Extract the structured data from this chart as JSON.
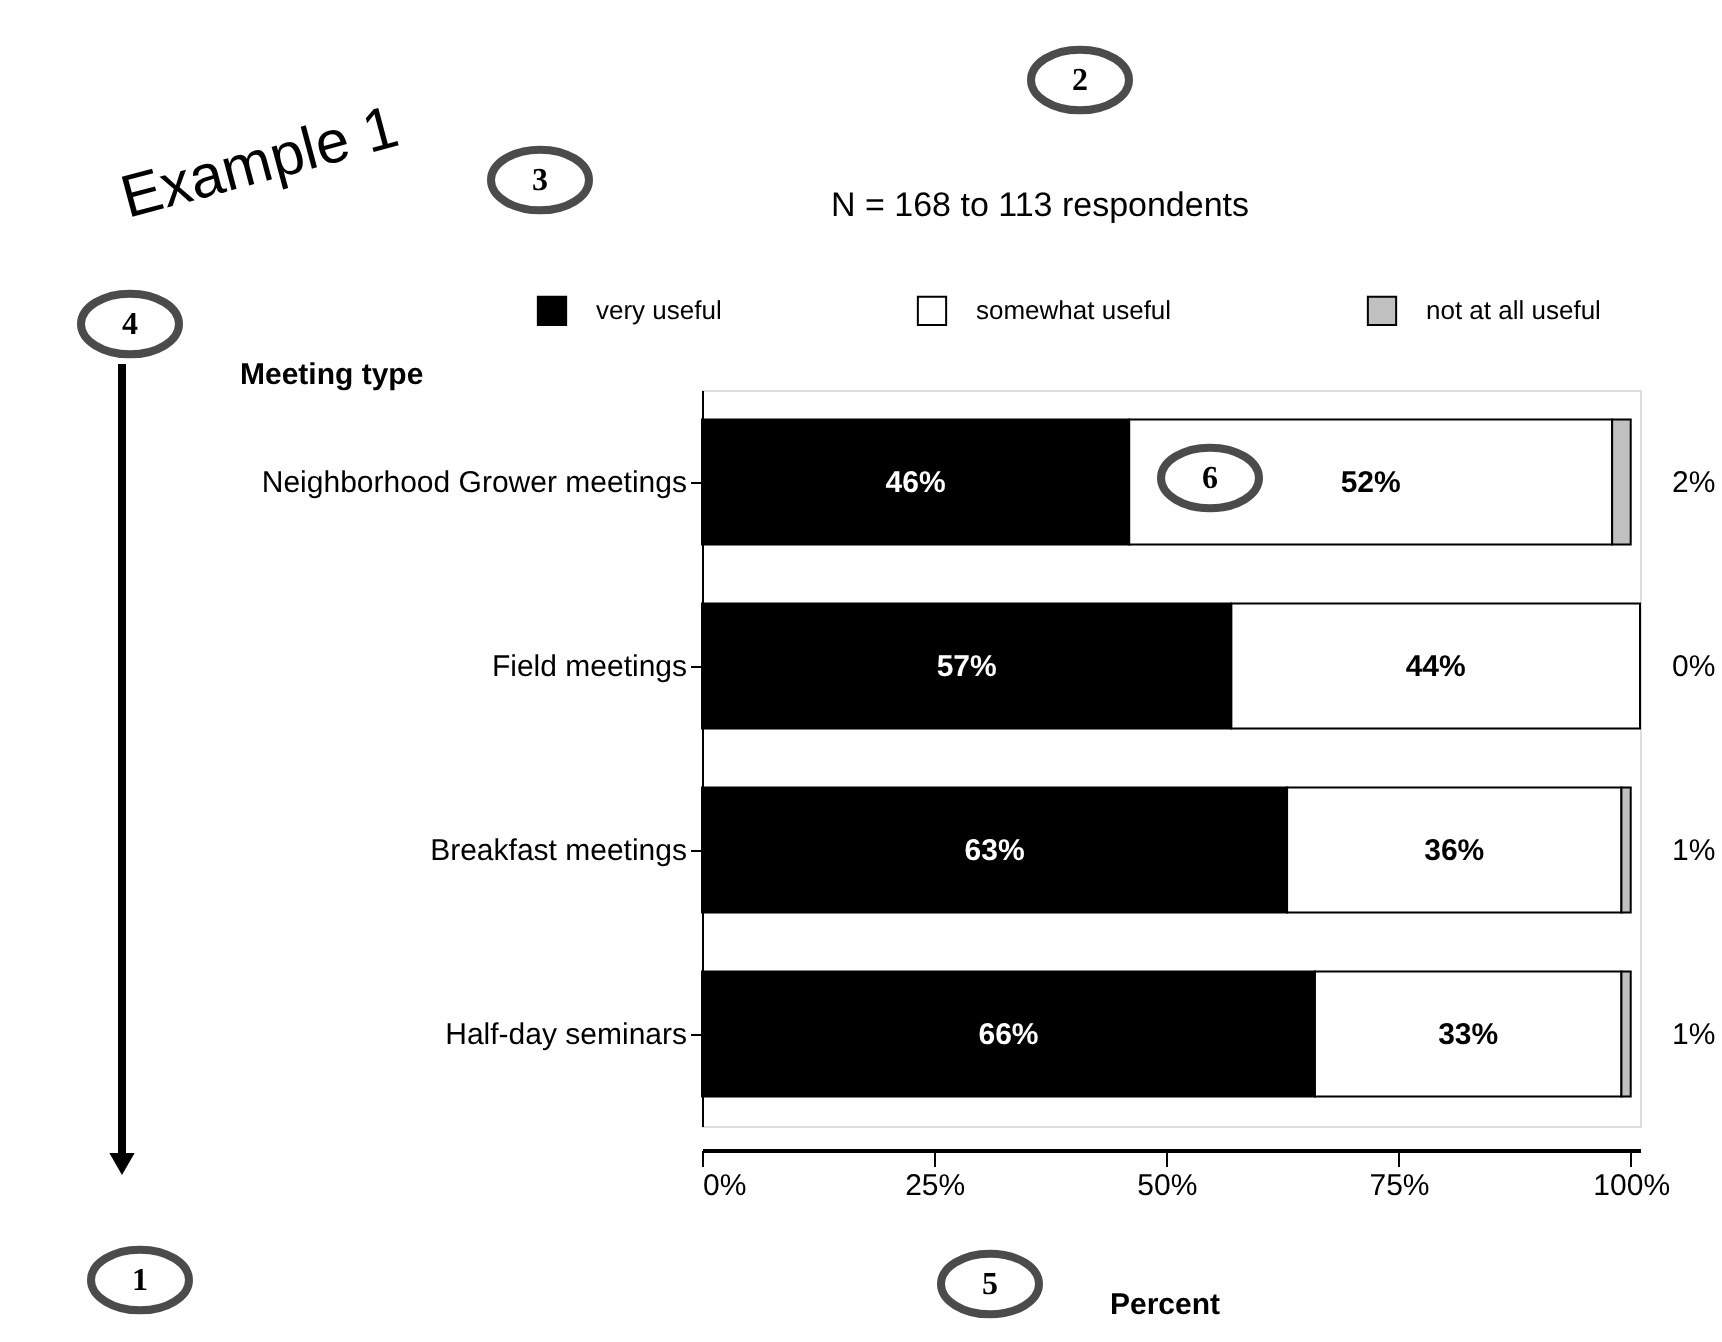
{
  "chart_data": {
    "type": "bar",
    "orientation": "horizontal",
    "stacked": true,
    "title": "N = 168 to 113 respondents",
    "ylabel": "Meeting type",
    "xlabel": "Percent",
    "categories": [
      "Neighborhood Grower meetings",
      "Field meetings",
      "Breakfast meetings",
      "Half-day seminars"
    ],
    "series": [
      {
        "name": "very useful",
        "color": "#000000",
        "values": [
          46,
          57,
          63,
          66
        ],
        "value_labels": [
          "46%",
          "57%",
          "63%",
          "66%"
        ]
      },
      {
        "name": "somewhat useful",
        "color": "#ffffff",
        "values": [
          52,
          44,
          36,
          33
        ],
        "value_labels": [
          "52%",
          "44%",
          "36%",
          "33%"
        ]
      },
      {
        "name": "not at all useful",
        "color": "#c0c0c0",
        "values": [
          2,
          0,
          1,
          1
        ],
        "value_labels": [
          "2%",
          "0%",
          "1%",
          "1%"
        ]
      }
    ],
    "xlim": [
      0,
      101
    ],
    "xticks": [
      {
        "value": 0,
        "label": "0%"
      },
      {
        "value": 25,
        "label": "25%"
      },
      {
        "value": 50,
        "label": "50%"
      },
      {
        "value": 75,
        "label": "75%"
      },
      {
        "value": 100,
        "label": "100%"
      }
    ],
    "legend": "top",
    "grid": false,
    "annotations": [
      "Example 1",
      "1",
      "2",
      "3",
      "4",
      "5",
      "6"
    ]
  }
}
